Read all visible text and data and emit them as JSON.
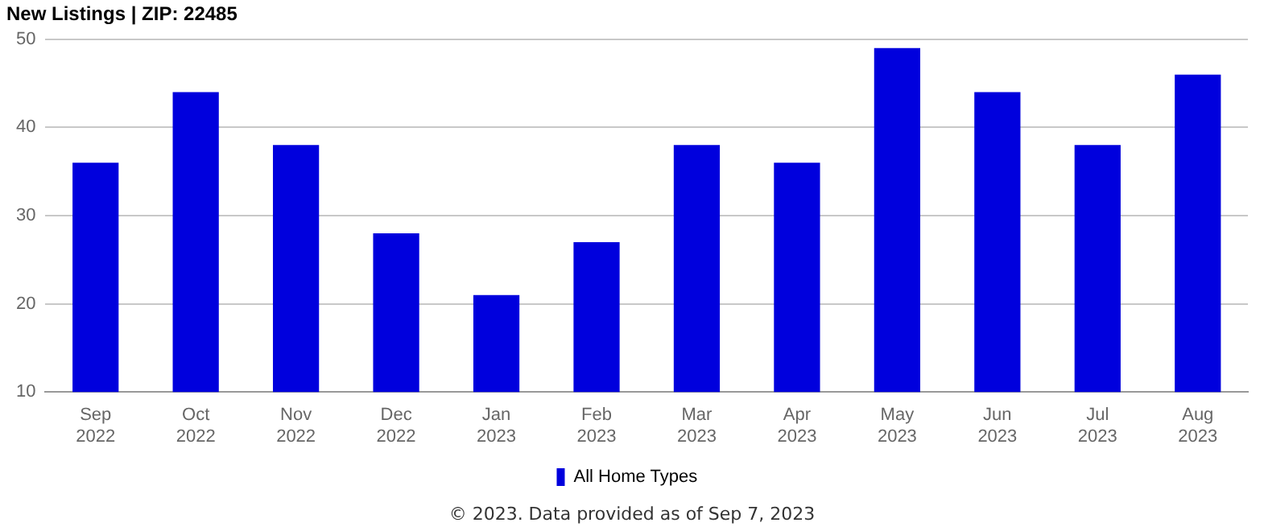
{
  "chart_data": {
    "type": "bar",
    "title": "New Listings | ZIP: 22485",
    "categories": [
      "Sep 2022",
      "Oct 2022",
      "Nov 2022",
      "Dec 2022",
      "Jan 2023",
      "Feb 2023",
      "Mar 2023",
      "Apr 2023",
      "May 2023",
      "Jun 2023",
      "Jul 2023",
      "Aug 2023"
    ],
    "series": [
      {
        "name": "All Home Types",
        "color": "#0000dd",
        "values": [
          36,
          44,
          38,
          28,
          21,
          27,
          38,
          36,
          49,
          44,
          38,
          46
        ]
      }
    ],
    "ylim": [
      10,
      50
    ],
    "yticks": [
      10,
      20,
      30,
      40,
      50
    ],
    "grid": "y",
    "legend": "bottom",
    "annotations": [
      "© 2023. Data provided as of Sep 7, 2023"
    ]
  }
}
